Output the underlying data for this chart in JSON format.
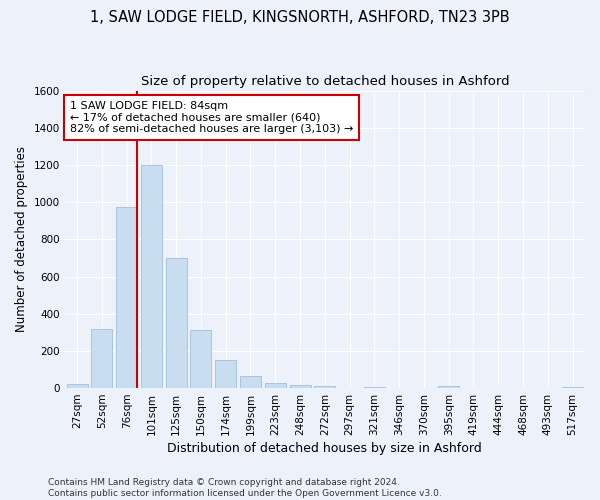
{
  "title1": "1, SAW LODGE FIELD, KINGSNORTH, ASHFORD, TN23 3PB",
  "title2": "Size of property relative to detached houses in Ashford",
  "xlabel": "Distribution of detached houses by size in Ashford",
  "ylabel": "Number of detached properties",
  "categories": [
    "27sqm",
    "52sqm",
    "76sqm",
    "101sqm",
    "125sqm",
    "150sqm",
    "174sqm",
    "199sqm",
    "223sqm",
    "248sqm",
    "272sqm",
    "297sqm",
    "321sqm",
    "346sqm",
    "370sqm",
    "395sqm",
    "419sqm",
    "444sqm",
    "468sqm",
    "493sqm",
    "517sqm"
  ],
  "values": [
    20,
    320,
    975,
    1200,
    700,
    310,
    150,
    65,
    25,
    15,
    10,
    0,
    5,
    0,
    0,
    10,
    0,
    0,
    0,
    0,
    5
  ],
  "bar_color": "#c9ddf0",
  "bar_edge_color": "#a8c4e0",
  "vline_index": 2,
  "vline_color": "#cc0000",
  "annotation_text": "1 SAW LODGE FIELD: 84sqm\n← 17% of detached houses are smaller (640)\n82% of semi-detached houses are larger (3,103) →",
  "annotation_box_color": "#ffffff",
  "annotation_box_edge": "#cc0000",
  "ylim": [
    0,
    1600
  ],
  "yticks": [
    0,
    200,
    400,
    600,
    800,
    1000,
    1200,
    1400,
    1600
  ],
  "footnote1": "Contains HM Land Registry data © Crown copyright and database right 2024.",
  "footnote2": "Contains public sector information licensed under the Open Government Licence v3.0.",
  "bg_color": "#edf2fa",
  "grid_color": "#ffffff",
  "title1_fontsize": 10.5,
  "title2_fontsize": 9.5,
  "xlabel_fontsize": 9,
  "ylabel_fontsize": 8.5,
  "tick_fontsize": 7.5,
  "annot_fontsize": 8,
  "footnote_fontsize": 6.5
}
